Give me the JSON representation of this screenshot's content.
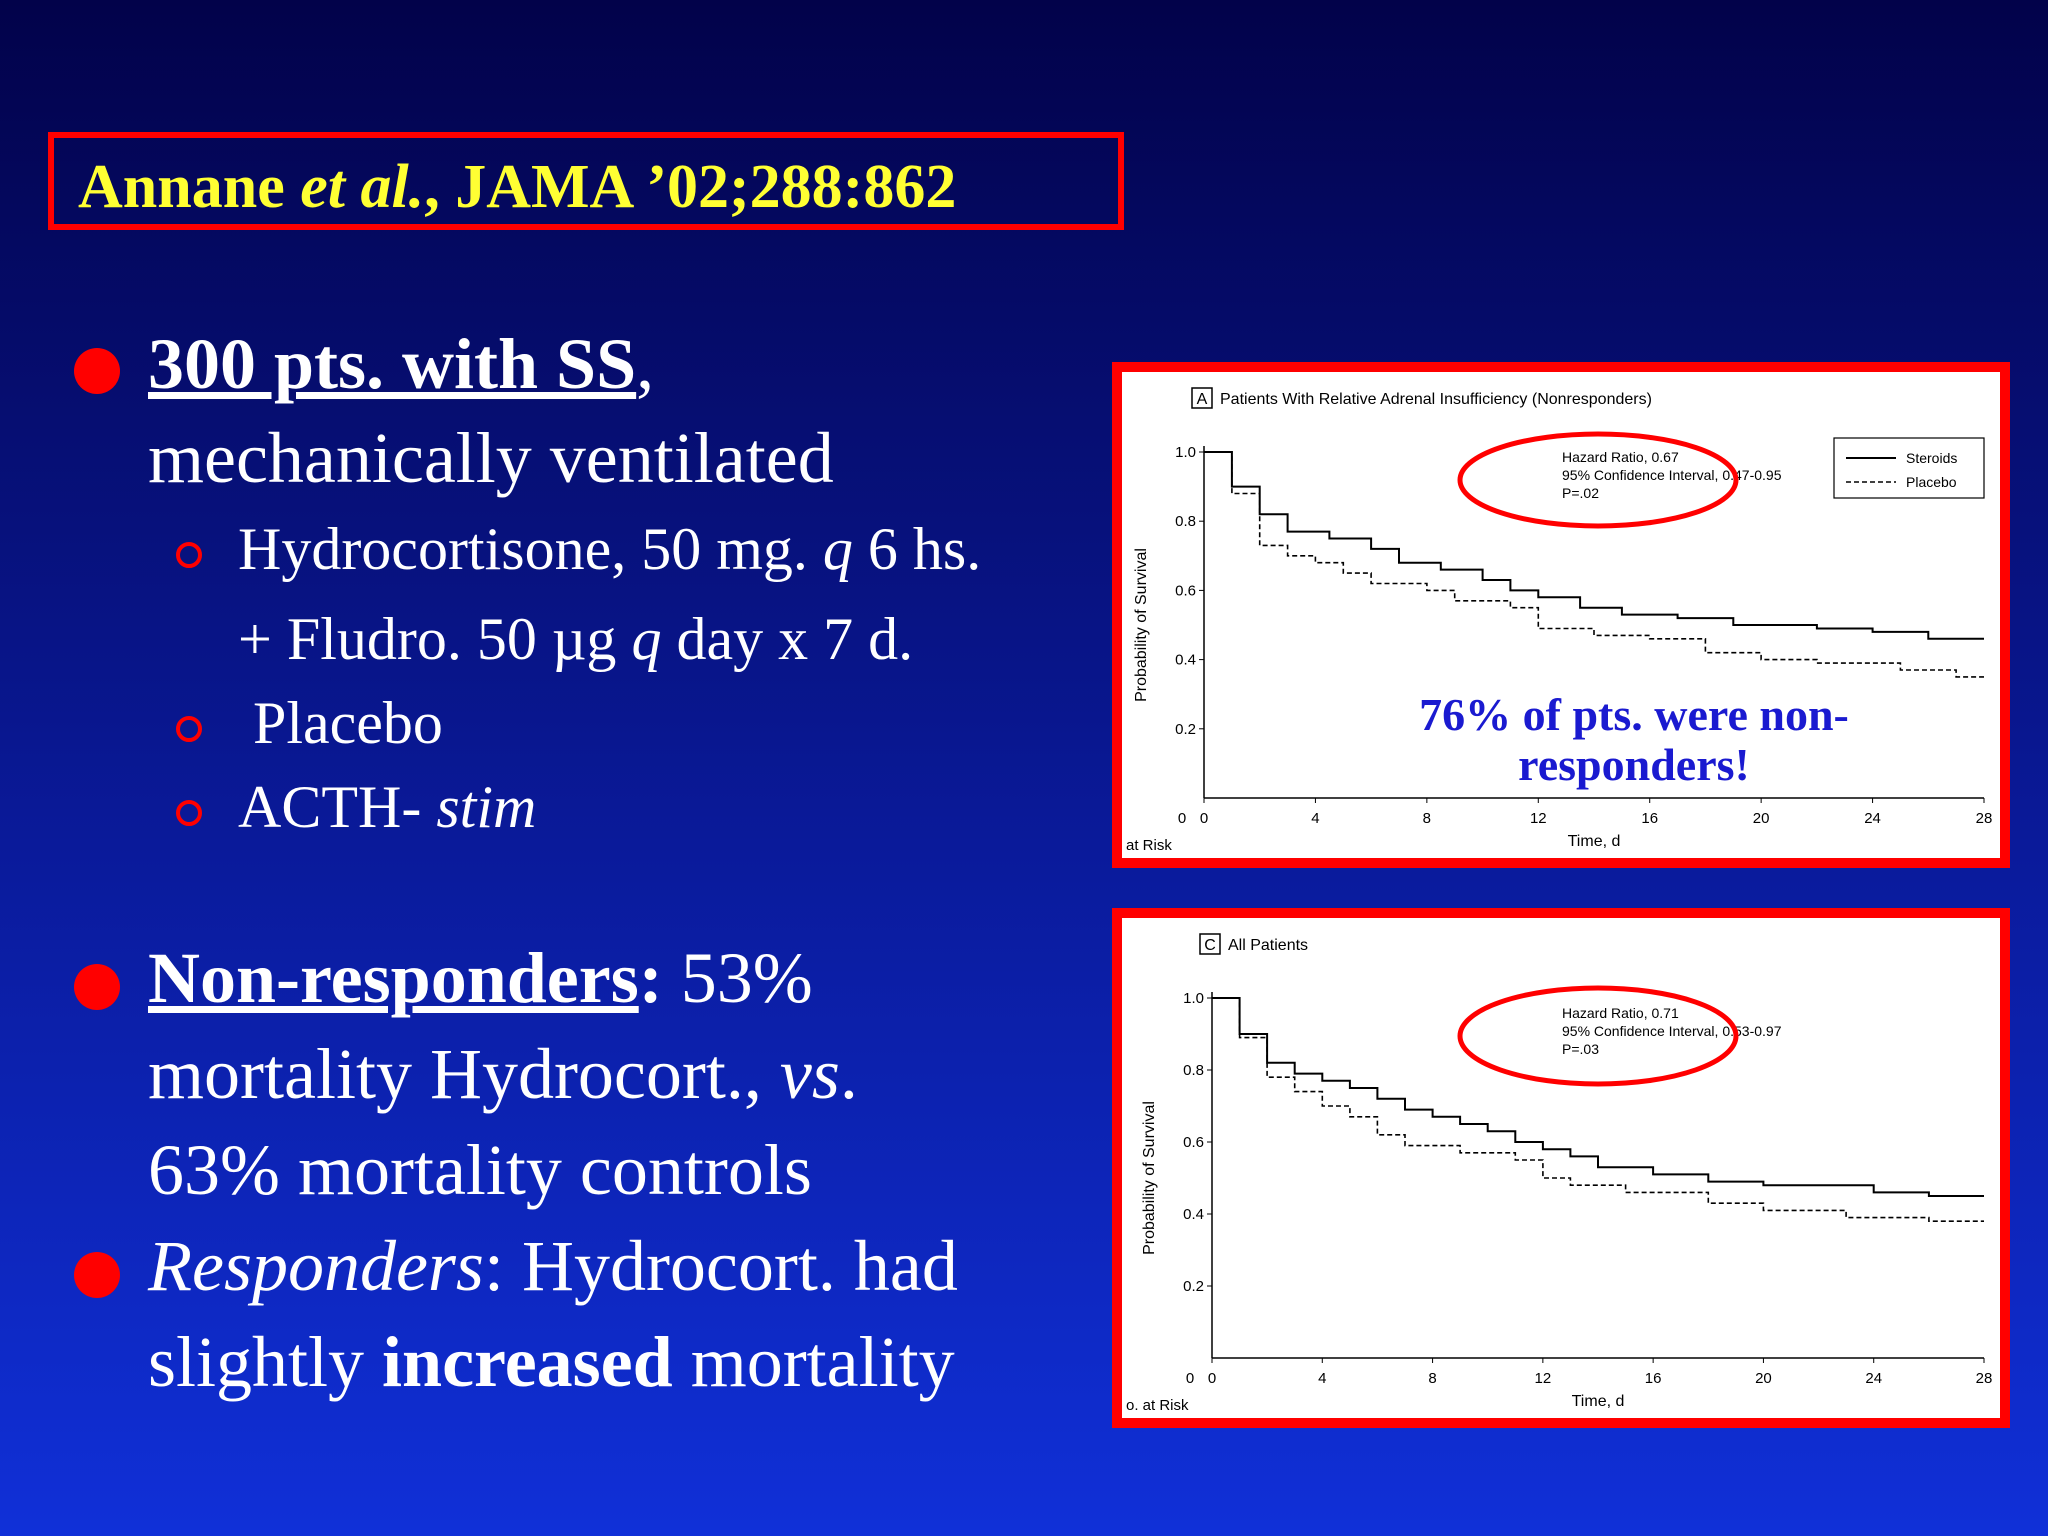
{
  "citation": {
    "author": "Annane",
    "etal": "et al.",
    "rest": ",  JAMA ’02;288:862"
  },
  "bullets": [
    {
      "lead": "300 pts. with SS",
      "after": ",",
      "line2": "mechanically ventilated",
      "sub": [
        {
          "t1": "Hydrocortisone, 50 mg. ",
          "q": "q",
          "t2": " 6 hs."
        },
        {
          "t1": "+ Fludro. 50 µg ",
          "q": "q",
          "t2": " day x 7 d."
        },
        {
          "t1": " Placebo"
        },
        {
          "t1": "ACTH- ",
          "q": "stim"
        }
      ]
    },
    {
      "lead": "Non-responders",
      "colon": ":",
      "tail": " 53%",
      "line2": "mortality Hydrocort., ",
      "vs": "vs",
      "dot": ".",
      "line3": "63% mortality controls"
    },
    {
      "lead": "Responders",
      "colon": ": Hydrocort. had",
      "line2a": "slightly ",
      "bold": "increased",
      "line2b": " mortality"
    }
  ],
  "annotation": {
    "line1": "76% of pts. were non-",
    "line2": "responders!"
  },
  "chart_data": [
    {
      "type": "line",
      "panel_letter": "A",
      "title": "Patients With Relative Adrenal Insufficiency (Nonresponders)",
      "xlabel": "Time, d",
      "ylabel": "Probability of Survival",
      "risk_label": "at Risk",
      "xlim": [
        0,
        28
      ],
      "ylim": [
        0,
        1.0
      ],
      "x_ticks": [
        0,
        4,
        8,
        12,
        16,
        20,
        24,
        28
      ],
      "y_ticks": [
        0.2,
        0.4,
        0.6,
        0.8,
        1.0
      ],
      "y_tick_labels": [
        "0.2",
        "0.4",
        "0.6",
        "0.8",
        "1.0"
      ],
      "y_zero_label": "0",
      "stats": [
        "Hazard Ratio, 0.67",
        "95% Confidence Interval, 0.47-0.95",
        "P=.02"
      ],
      "series": [
        {
          "name": "Steroids",
          "style": "solid",
          "points": [
            [
              0,
              1.0
            ],
            [
              1,
              1.0
            ],
            [
              1,
              0.9
            ],
            [
              2,
              0.9
            ],
            [
              2,
              0.82
            ],
            [
              3,
              0.82
            ],
            [
              3,
              0.77
            ],
            [
              4.5,
              0.77
            ],
            [
              4.5,
              0.75
            ],
            [
              6,
              0.75
            ],
            [
              6,
              0.72
            ],
            [
              7,
              0.72
            ],
            [
              7,
              0.68
            ],
            [
              8.5,
              0.68
            ],
            [
              8.5,
              0.66
            ],
            [
              10,
              0.66
            ],
            [
              10,
              0.63
            ],
            [
              11,
              0.63
            ],
            [
              11,
              0.6
            ],
            [
              12,
              0.6
            ],
            [
              12,
              0.58
            ],
            [
              13.5,
              0.58
            ],
            [
              13.5,
              0.55
            ],
            [
              15,
              0.55
            ],
            [
              15,
              0.53
            ],
            [
              17,
              0.53
            ],
            [
              17,
              0.52
            ],
            [
              19,
              0.52
            ],
            [
              19,
              0.5
            ],
            [
              22,
              0.5
            ],
            [
              22,
              0.49
            ],
            [
              24,
              0.49
            ],
            [
              24,
              0.48
            ],
            [
              26,
              0.48
            ],
            [
              26,
              0.46
            ],
            [
              28,
              0.46
            ]
          ]
        },
        {
          "name": "Placebo",
          "style": "dashed",
          "points": [
            [
              0,
              1.0
            ],
            [
              1,
              1.0
            ],
            [
              1,
              0.88
            ],
            [
              2,
              0.88
            ],
            [
              2,
              0.73
            ],
            [
              3,
              0.73
            ],
            [
              3,
              0.7
            ],
            [
              4,
              0.7
            ],
            [
              4,
              0.68
            ],
            [
              5,
              0.68
            ],
            [
              5,
              0.65
            ],
            [
              6,
              0.65
            ],
            [
              6,
              0.62
            ],
            [
              8,
              0.62
            ],
            [
              8,
              0.6
            ],
            [
              9,
              0.6
            ],
            [
              9,
              0.57
            ],
            [
              11,
              0.57
            ],
            [
              11,
              0.55
            ],
            [
              12,
              0.55
            ],
            [
              12,
              0.49
            ],
            [
              14,
              0.49
            ],
            [
              14,
              0.47
            ],
            [
              16,
              0.47
            ],
            [
              16,
              0.46
            ],
            [
              18,
              0.46
            ],
            [
              18,
              0.42
            ],
            [
              20,
              0.42
            ],
            [
              20,
              0.4
            ],
            [
              22,
              0.4
            ],
            [
              22,
              0.39
            ],
            [
              25,
              0.39
            ],
            [
              25,
              0.37
            ],
            [
              27,
              0.37
            ],
            [
              27,
              0.35
            ],
            [
              28,
              0.35
            ]
          ]
        }
      ]
    },
    {
      "type": "line",
      "panel_letter": "C",
      "title": "All Patients",
      "xlabel": "Time, d",
      "ylabel": "Probability of Survival",
      "risk_label": "o. at Risk",
      "xlim": [
        0,
        28
      ],
      "ylim": [
        0,
        1.0
      ],
      "x_ticks": [
        0,
        4,
        8,
        12,
        16,
        20,
        24,
        28
      ],
      "y_ticks": [
        0.2,
        0.4,
        0.6,
        0.8,
        1.0
      ],
      "y_tick_labels": [
        "0.2",
        "0.4",
        "0.6",
        "0.8",
        "1.0"
      ],
      "y_zero_label": "0",
      "stats": [
        "Hazard Ratio, 0.71",
        "95% Confidence Interval, 0.53-0.97",
        "P=.03"
      ],
      "series": [
        {
          "name": "Steroids",
          "style": "solid",
          "points": [
            [
              0,
              1.0
            ],
            [
              1,
              1.0
            ],
            [
              1,
              0.9
            ],
            [
              2,
              0.9
            ],
            [
              2,
              0.82
            ],
            [
              3,
              0.82
            ],
            [
              3,
              0.79
            ],
            [
              4,
              0.79
            ],
            [
              4,
              0.77
            ],
            [
              5,
              0.77
            ],
            [
              5,
              0.75
            ],
            [
              6,
              0.75
            ],
            [
              6,
              0.72
            ],
            [
              7,
              0.72
            ],
            [
              7,
              0.69
            ],
            [
              8,
              0.69
            ],
            [
              8,
              0.67
            ],
            [
              9,
              0.67
            ],
            [
              9,
              0.65
            ],
            [
              10,
              0.65
            ],
            [
              10,
              0.63
            ],
            [
              11,
              0.63
            ],
            [
              11,
              0.6
            ],
            [
              12,
              0.6
            ],
            [
              12,
              0.58
            ],
            [
              13,
              0.58
            ],
            [
              13,
              0.56
            ],
            [
              14,
              0.56
            ],
            [
              14,
              0.53
            ],
            [
              16,
              0.53
            ],
            [
              16,
              0.51
            ],
            [
              18,
              0.51
            ],
            [
              18,
              0.49
            ],
            [
              20,
              0.49
            ],
            [
              20,
              0.48
            ],
            [
              24,
              0.48
            ],
            [
              24,
              0.46
            ],
            [
              26,
              0.46
            ],
            [
              26,
              0.45
            ],
            [
              28,
              0.45
            ]
          ]
        },
        {
          "name": "Placebo",
          "style": "dashed",
          "points": [
            [
              0,
              1.0
            ],
            [
              1,
              1.0
            ],
            [
              1,
              0.89
            ],
            [
              2,
              0.89
            ],
            [
              2,
              0.78
            ],
            [
              3,
              0.78
            ],
            [
              3,
              0.74
            ],
            [
              4,
              0.74
            ],
            [
              4,
              0.7
            ],
            [
              5,
              0.7
            ],
            [
              5,
              0.67
            ],
            [
              6,
              0.67
            ],
            [
              6,
              0.62
            ],
            [
              7,
              0.62
            ],
            [
              7,
              0.59
            ],
            [
              9,
              0.59
            ],
            [
              9,
              0.57
            ],
            [
              11,
              0.57
            ],
            [
              11,
              0.55
            ],
            [
              12,
              0.55
            ],
            [
              12,
              0.5
            ],
            [
              13,
              0.5
            ],
            [
              13,
              0.48
            ],
            [
              15,
              0.48
            ],
            [
              15,
              0.46
            ],
            [
              18,
              0.46
            ],
            [
              18,
              0.43
            ],
            [
              20,
              0.43
            ],
            [
              20,
              0.41
            ],
            [
              23,
              0.41
            ],
            [
              23,
              0.39
            ],
            [
              26,
              0.39
            ],
            [
              26,
              0.38
            ],
            [
              28,
              0.38
            ]
          ]
        }
      ]
    }
  ]
}
